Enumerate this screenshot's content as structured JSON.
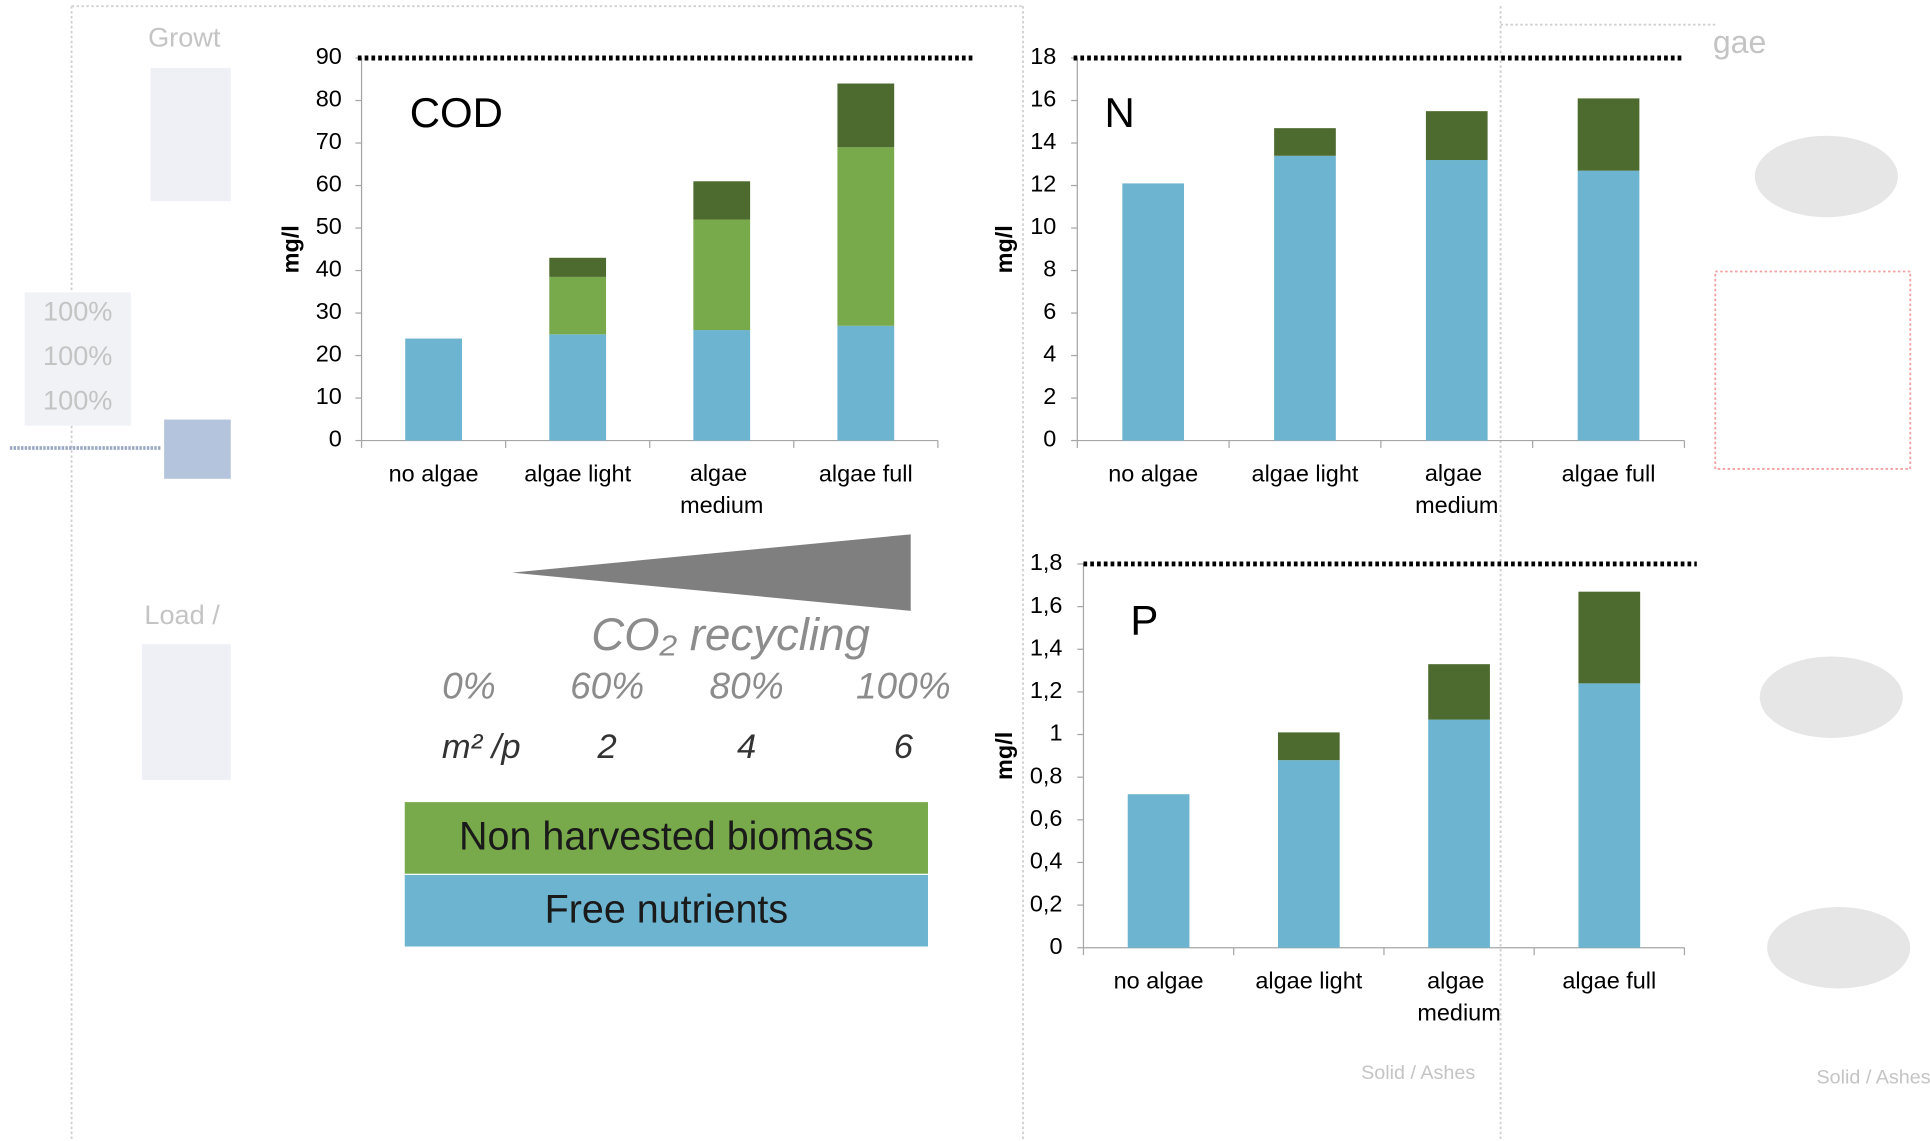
{
  "chart_data": [
    {
      "type": "bar",
      "stacked": true,
      "annotation": "COD",
      "y_label": "mg/l",
      "categories": [
        "no algae",
        "algae light",
        "algae medium",
        "algae full"
      ],
      "series": [
        {
          "name": "Free nutrients",
          "color": "#6cb4cf",
          "values": [
            24,
            25,
            26,
            27
          ]
        },
        {
          "name": "Non harvested biomass",
          "color": "#78a94a",
          "values": [
            null,
            13.5,
            26,
            42
          ]
        },
        {
          "color": "#4e6b2f",
          "values": [
            null,
            4.5,
            9,
            15
          ]
        }
      ],
      "ylim": [
        0,
        90
      ],
      "yticks": [
        0,
        10,
        20,
        30,
        40,
        50,
        60,
        70,
        80,
        90
      ],
      "limit_line": 90
    },
    {
      "type": "bar",
      "stacked": true,
      "annotation": "N",
      "y_label": "mg/l",
      "categories": [
        "no algae",
        "algae light",
        "algae medium",
        "algae full"
      ],
      "series": [
        {
          "color": "#6cb4cf",
          "values": [
            12.1,
            13.4,
            13.2,
            12.7
          ]
        },
        {
          "color": "#4e6b2f",
          "values": [
            null,
            1.3,
            2.3,
            3.4
          ]
        }
      ],
      "ylim": [
        0,
        18
      ],
      "yticks": [
        0,
        2,
        4,
        6,
        8,
        10,
        12,
        14,
        16,
        18
      ],
      "limit_line": 18
    },
    {
      "type": "bar",
      "stacked": true,
      "annotation": "P",
      "y_label": "mg/l",
      "categories": [
        "no algae",
        "algae light",
        "algae medium",
        "algae full"
      ],
      "series": [
        {
          "color": "#6cb4cf",
          "values": [
            0.72,
            0.88,
            1.07,
            1.24
          ]
        },
        {
          "color": "#4e6b2f",
          "values": [
            null,
            0.13,
            0.26,
            0.43
          ]
        }
      ],
      "ylim": [
        0,
        1.8
      ],
      "yticks": [
        0,
        {
          "value": 0.2,
          "label": "0,2"
        },
        {
          "value": 0.4,
          "label": "0,4"
        },
        {
          "value": 0.6,
          "label": "0,6"
        },
        {
          "value": 0.8,
          "label": "0,8"
        },
        1,
        {
          "value": 1.2,
          "label": "1,2"
        },
        {
          "value": 1.4,
          "label": "1,4"
        },
        {
          "value": 1.6,
          "label": "1,6"
        },
        {
          "value": 1.8,
          "label": "1,8"
        }
      ],
      "limit_line": 1.8
    }
  ],
  "co2_recycling": {
    "title": "CO₂ recycling",
    "percentages": [
      "0%",
      "60%",
      "80%",
      "100%"
    ],
    "area_label": "m² /p",
    "area_values": [
      2,
      4,
      6
    ]
  },
  "background": {
    "fragments": [
      "Growt",
      "Load /",
      "gae",
      "100%",
      "100%",
      "100%",
      "Solid / Ashes",
      "Solid / Ashes"
    ]
  }
}
